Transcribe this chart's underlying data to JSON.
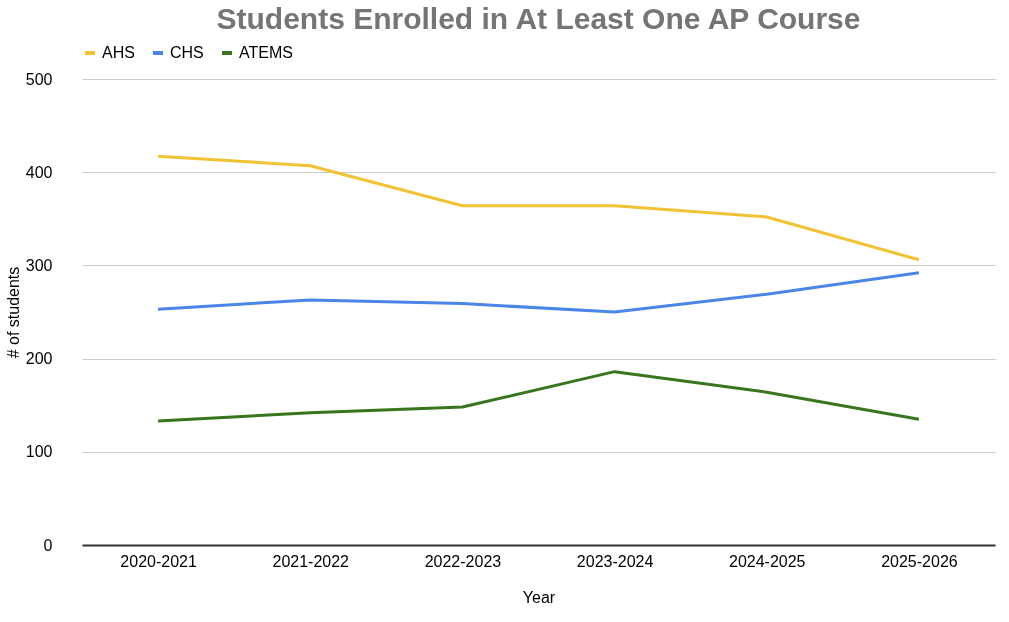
{
  "chart_data": {
    "type": "line",
    "title": "Students Enrolled in At Least One AP Course",
    "xlabel": "Year",
    "ylabel": "# of students",
    "categories": [
      "2020-2021",
      "2021-2022",
      "2022-2023",
      "2023-2024",
      "2024-2025",
      "2025-2026"
    ],
    "series": [
      {
        "name": "AHS",
        "color": "#f1c232",
        "values": [
          417,
          407,
          364,
          364,
          352,
          306
        ]
      },
      {
        "name": "CHS",
        "color": "#4a86e8",
        "values": [
          253,
          263,
          259,
          250,
          269,
          292
        ]
      },
      {
        "name": "ATEMS",
        "color": "#38761d",
        "values": [
          133,
          142,
          148,
          186,
          164,
          135
        ]
      }
    ],
    "ylim": [
      0,
      500
    ],
    "yticks": [
      0,
      100,
      200,
      300,
      400,
      500
    ],
    "grid": "y",
    "legend": "top",
    "marker": "none",
    "line_style": "solid"
  }
}
